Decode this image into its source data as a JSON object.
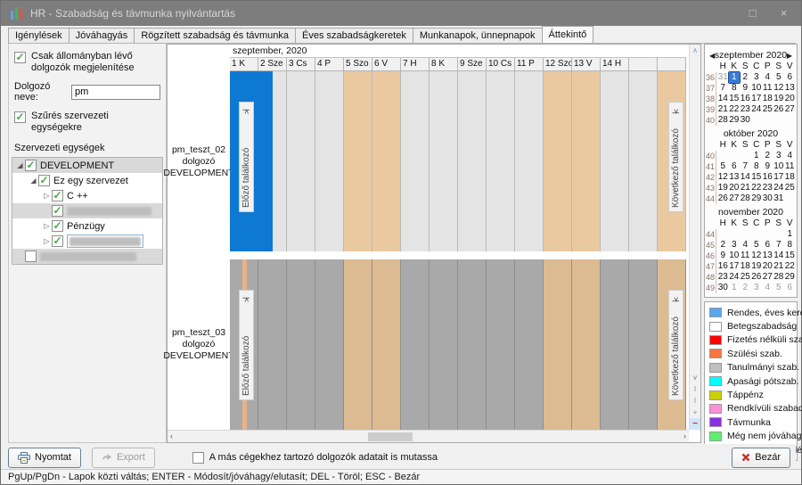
{
  "window": {
    "title": "HR - Szabadság és távmunka nyilvántartás"
  },
  "icons": {
    "maximize": "□",
    "close": "×",
    "check": "✓",
    "expander_open": "◢",
    "expander_closed": "▷",
    "cal_prev": "◀",
    "cal_next": "▶",
    "scroll_up": "∧",
    "scroll_down": "∨",
    "scroll_left": "‹",
    "scroll_right": "›",
    "fit": "I",
    "plus": "+",
    "minus": "−"
  },
  "tabs": [
    {
      "label": "Igénylések",
      "active": false
    },
    {
      "label": "Jóváhagyás",
      "active": false
    },
    {
      "label": "Rögzített szabadság és távmunka",
      "active": false
    },
    {
      "label": "Éves szabadságkeretek",
      "active": false
    },
    {
      "label": "Munkanapok, ünnepnapok",
      "active": false
    },
    {
      "label": "Áttekintő",
      "active": true
    }
  ],
  "filters": {
    "only_employed_label": "Csak állományban lévő dolgozók megjelenítése",
    "worker_name_label": "Dolgozó neve:",
    "worker_name_value": "pm",
    "org_filter_label": "Szűrés szervezeti egységekre",
    "org_tree_header": "Szervezeti egységek",
    "tree": [
      {
        "label": "DEVELOPMENT",
        "indent": 0,
        "expander": "open",
        "checked": true,
        "selected": true
      },
      {
        "label": "Ez egy szervezet",
        "indent": 1,
        "expander": "open",
        "checked": true
      },
      {
        "label": "C ++",
        "indent": 2,
        "expander": "closed",
        "checked": true
      },
      {
        "label": "",
        "indent": 2,
        "expander": "none",
        "checked": true,
        "redacted": 95,
        "selected": true
      },
      {
        "label": "Pénzügy",
        "indent": 2,
        "expander": "closed",
        "checked": true
      },
      {
        "label": "",
        "indent": 2,
        "expander": "closed",
        "checked": true,
        "redacted": 80,
        "editbox": true
      },
      {
        "label": "",
        "indent": 0,
        "expander": "none",
        "checked": false,
        "redacted": 108,
        "selected": true
      }
    ]
  },
  "schedule": {
    "month_label": "szeptember, 2020",
    "prev_jump_icon": "|<",
    "next_jump_icon": ">|",
    "prev_jump_label": "Előző találkozó",
    "next_jump_label": "Következő találkozó",
    "palette": {
      "light_work": "#e4e4e4",
      "light_weekend": "#eac9a0",
      "dark_work": "#a9a9a9",
      "dark_weekend": "#dcbb93",
      "vacation_blue": "#0e79d2",
      "birth_orange": "#e9b287"
    },
    "days": [
      {
        "label": "1 K",
        "type": "work"
      },
      {
        "label": "2 Sze",
        "type": "work"
      },
      {
        "label": "3 Cs",
        "type": "work"
      },
      {
        "label": "4 P",
        "type": "work"
      },
      {
        "label": "5 Szo",
        "type": "weekend"
      },
      {
        "label": "6 V",
        "type": "weekend"
      },
      {
        "label": "7 H",
        "type": "work"
      },
      {
        "label": "8 K",
        "type": "work"
      },
      {
        "label": "9 Sze",
        "type": "work"
      },
      {
        "label": "10 Cs",
        "type": "work"
      },
      {
        "label": "11 P",
        "type": "work"
      },
      {
        "label": "12 Szo",
        "type": "weekend"
      },
      {
        "label": "13 V",
        "type": "weekend"
      },
      {
        "label": "14 H",
        "type": "work"
      },
      {
        "label": "",
        "type": "work"
      },
      {
        "label": "",
        "type": "weekend"
      }
    ],
    "rows": [
      {
        "employee": "pm_teszt_02 dolgozó",
        "org": "DEVELOPMENT",
        "shade": "light",
        "events": [
          {
            "offset": 0,
            "span": 1.5,
            "color_key": "vacation_blue"
          }
        ]
      },
      {
        "employee": "pm_teszt_03 dolgozó",
        "org": "DEVELOPMENT",
        "shade": "dark",
        "events": [
          {
            "offset": 0.44,
            "span": 0.16,
            "color_key": "birth_orange"
          }
        ]
      }
    ]
  },
  "calendars": [
    {
      "title": "szeptember 2020",
      "nav": true,
      "dows": [
        "H",
        "K",
        "S",
        "C",
        "P",
        "S",
        "V"
      ],
      "weeks": [
        [
          36,
          [
            "31m",
            "1s",
            2,
            3,
            4,
            5,
            6
          ]
        ],
        [
          37,
          [
            7,
            8,
            9,
            10,
            11,
            12,
            13
          ]
        ],
        [
          38,
          [
            14,
            15,
            16,
            17,
            18,
            19,
            20
          ]
        ],
        [
          39,
          [
            21,
            22,
            23,
            24,
            25,
            26,
            27
          ]
        ],
        [
          40,
          [
            28,
            29,
            30,
            null,
            null,
            null,
            null
          ]
        ]
      ]
    },
    {
      "title": "október 2020",
      "nav": false,
      "dows": [
        "H",
        "K",
        "S",
        "C",
        "P",
        "S",
        "V"
      ],
      "weeks": [
        [
          40,
          [
            null,
            null,
            null,
            1,
            2,
            3,
            4
          ]
        ],
        [
          41,
          [
            5,
            6,
            7,
            8,
            9,
            10,
            11
          ]
        ],
        [
          42,
          [
            12,
            13,
            14,
            15,
            16,
            17,
            18
          ]
        ],
        [
          43,
          [
            19,
            20,
            21,
            22,
            23,
            24,
            25
          ]
        ],
        [
          44,
          [
            26,
            27,
            28,
            29,
            30,
            31,
            null
          ]
        ]
      ]
    },
    {
      "title": "november 2020",
      "nav": false,
      "dows": [
        "H",
        "K",
        "S",
        "C",
        "P",
        "S",
        "V"
      ],
      "weeks": [
        [
          44,
          [
            null,
            null,
            null,
            null,
            null,
            null,
            1
          ]
        ],
        [
          45,
          [
            2,
            3,
            4,
            5,
            6,
            7,
            8
          ]
        ],
        [
          46,
          [
            9,
            10,
            11,
            12,
            13,
            14,
            15
          ]
        ],
        [
          47,
          [
            16,
            17,
            18,
            19,
            20,
            21,
            22
          ]
        ],
        [
          48,
          [
            23,
            24,
            25,
            26,
            27,
            28,
            29
          ]
        ],
        [
          49,
          [
            30,
            "1m",
            "2m",
            "3m",
            "4m",
            "5m",
            "6m"
          ]
        ]
      ]
    }
  ],
  "legend": [
    {
      "color": "#57a7ef",
      "label": "Rendes, éves keretre"
    },
    {
      "color": "#ffffff",
      "label": "Betegszabadság"
    },
    {
      "color": "#ff0000",
      "label": "Fizetés nélküli szab."
    },
    {
      "color": "#f7753f",
      "label": "Szülési szab."
    },
    {
      "color": "#c0c0c0",
      "label": "Tanulmányi szab."
    },
    {
      "color": "#00ffff",
      "label": "Apasági pótszab."
    },
    {
      "color": "#c9d100",
      "label": "Táppénz"
    },
    {
      "color": "#fb90d8",
      "label": "Rendkívüli szabadság"
    },
    {
      "color": "#8b2fe4",
      "label": "Távmunka"
    },
    {
      "color": "#5df06f",
      "label": "Még nem jóváhagyott"
    },
    {
      "color": "#1c9a23",
      "label": "Igazolatlan távollét"
    }
  ],
  "footer": {
    "print_label": "Nyomtat",
    "export_label": "Export",
    "other_companies_label": "A más cégekhez tartozó dolgozók adatait is mutassa",
    "close_label": "Bezár"
  },
  "statusbar": "PgUp/PgDn - Lapok közti váltás; ENTER - Módosít/jóváhagy/elutasít; DEL - Töröl; ESC - Bezár"
}
